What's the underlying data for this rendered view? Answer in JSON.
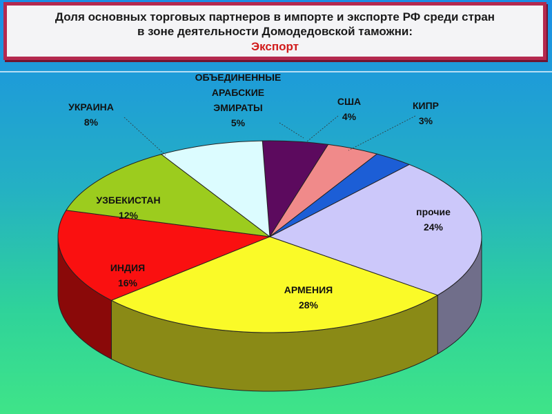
{
  "header": {
    "title_line1": "Доля основных торговых партнеров в импорте и экспорте РФ среди стран",
    "title_line2": "в зоне деятельности Домодедовской таможни:",
    "subtitle": "Экспорт"
  },
  "chart_data": {
    "type": "pie",
    "title": "Доля основных торговых партнеров в импорте и экспорте РФ среди стран в зоне деятельности Домодедовской таможни: Экспорт",
    "style": "3d-exploded-none",
    "slices": [
      {
        "label": "ОБЪЕДИНЕННЫЕ АРАБСКИЕ ЭМИРАТЫ",
        "label_lines": [
          "ОБЪЕДИНЕННЫЕ",
          "АРАБСКИЕ",
          "ЭМИРАТЫ"
        ],
        "percent_label": "5%",
        "value": 5,
        "color": "#5c0a5e"
      },
      {
        "label": "США",
        "label_lines": [
          "США"
        ],
        "percent_label": "4%",
        "value": 4,
        "color": "#f08a8a"
      },
      {
        "label": "КИПР",
        "label_lines": [
          "КИПР"
        ],
        "percent_label": "3%",
        "value": 3,
        "color": "#1c5ed6"
      },
      {
        "label": "прочие",
        "label_lines": [
          "прочие"
        ],
        "percent_label": "24%",
        "value": 24,
        "color": "#ccc8fa"
      },
      {
        "label": "АРМЕНИЯ",
        "label_lines": [
          "АРМЕНИЯ"
        ],
        "percent_label": "28%",
        "value": 28,
        "color": "#fafa28"
      },
      {
        "label": "ИНДИЯ",
        "label_lines": [
          "ИНДИЯ"
        ],
        "percent_label": "16%",
        "value": 16,
        "color": "#fa1010"
      },
      {
        "label": "УЗБЕКИСТАН",
        "label_lines": [
          "УЗБЕКИСТАН"
        ],
        "percent_label": "12%",
        "value": 12,
        "color": "#9ccc1e"
      },
      {
        "label": "УКРАИНА",
        "label_lines": [
          "УКРАИНА"
        ],
        "percent_label": "8%",
        "value": 8,
        "color": "#dcfcff"
      }
    ]
  }
}
